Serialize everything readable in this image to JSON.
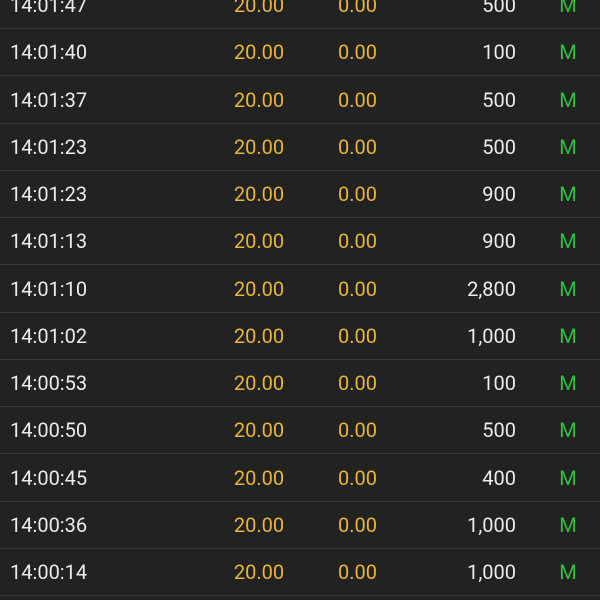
{
  "table": {
    "rows": [
      [
        "14:01:47",
        "20.00",
        "0.00",
        "500",
        "M"
      ],
      [
        "14:01:40",
        "20.00",
        "0.00",
        "100",
        "M"
      ],
      [
        "14:01:37",
        "20.00",
        "0.00",
        "500",
        "M"
      ],
      [
        "14:01:23",
        "20.00",
        "0.00",
        "500",
        "M"
      ],
      [
        "14:01:23",
        "20.00",
        "0.00",
        "900",
        "M"
      ],
      [
        "14:01:13",
        "20.00",
        "0.00",
        "900",
        "M"
      ],
      [
        "14:01:10",
        "20.00",
        "0.00",
        "2,800",
        "M"
      ],
      [
        "14:01:02",
        "20.00",
        "0.00",
        "1,000",
        "M"
      ],
      [
        "14:00:53",
        "20.00",
        "0.00",
        "100",
        "M"
      ],
      [
        "14:00:50",
        "20.00",
        "0.00",
        "500",
        "M"
      ],
      [
        "14:00:45",
        "20.00",
        "0.00",
        "400",
        "M"
      ],
      [
        "14:00:36",
        "20.00",
        "0.00",
        "1,000",
        "M"
      ],
      [
        "14:00:14",
        "20.00",
        "0.00",
        "1,000",
        "M"
      ]
    ]
  }
}
